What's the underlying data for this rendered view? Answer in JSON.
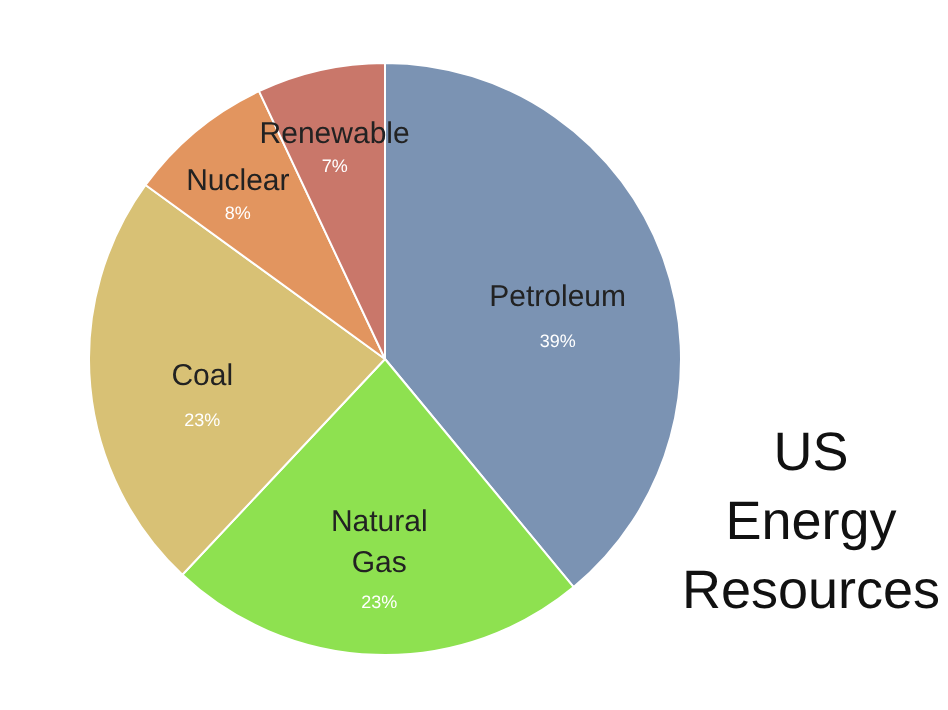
{
  "chart_data": {
    "type": "pie",
    "title": "US Energy Resources",
    "categories": [
      "Petroleum",
      "Natural Gas",
      "Coal",
      "Nuclear",
      "Renewable"
    ],
    "values": [
      39,
      23,
      23,
      8,
      7
    ],
    "colors": [
      "#7b93b3",
      "#8ee150",
      "#d8c175",
      "#e2955f",
      "#c9776a"
    ],
    "value_labels": [
      "39%",
      "23%",
      "23%",
      "8%",
      "7%"
    ]
  }
}
